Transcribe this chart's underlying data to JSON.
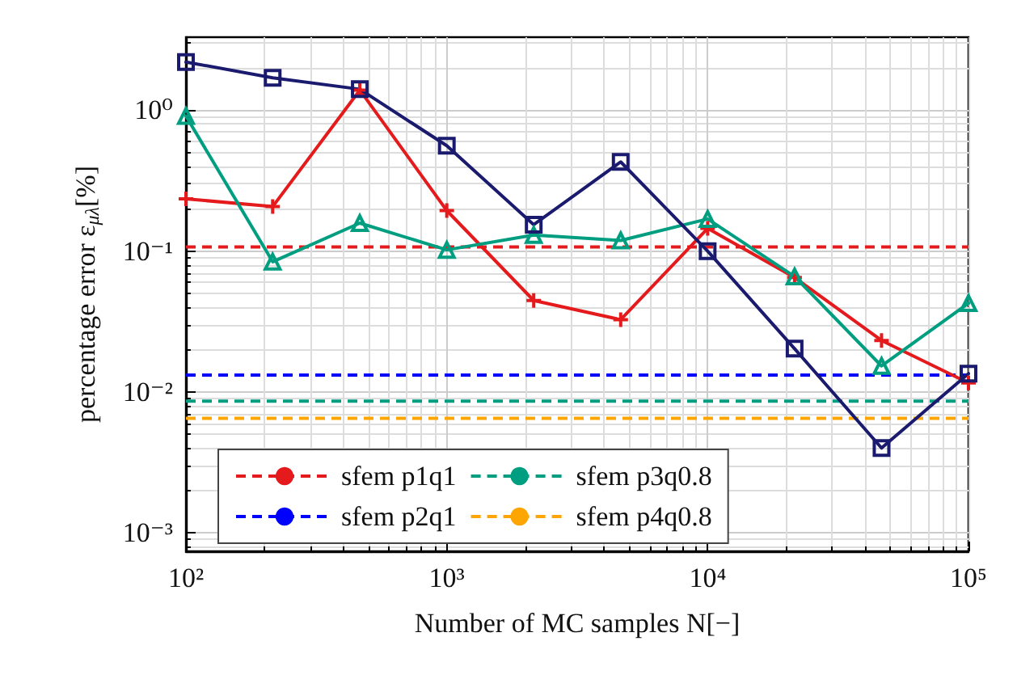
{
  "chart_data": {
    "type": "line",
    "xlabel": "Number of MC samples N[−]",
    "ylabel": "percentage error ε$_{μλ}$[%]",
    "x": [
      100,
      215,
      464,
      1000,
      2154,
      4642,
      10000,
      21544,
      46416,
      100000
    ],
    "series": [
      {
        "color": "#e41a1c",
        "marker": "cross",
        "values": [
          0.235,
          0.207,
          1.39,
          0.194,
          0.0446,
          0.0326,
          0.145,
          0.065,
          0.0232,
          0.0116
        ]
      },
      {
        "color": "#009e80",
        "marker": "triangle",
        "values": [
          0.91,
          0.084,
          0.158,
          0.102,
          0.13,
          0.119,
          0.169,
          0.066,
          0.0153,
          0.0427
        ]
      },
      {
        "color": "#1a1a6e",
        "marker": "square",
        "values": [
          2.2,
          1.7,
          1.41,
          0.56,
          0.154,
          0.43,
          0.1,
          0.0203,
          0.004,
          0.0135
        ]
      }
    ],
    "ref_lines": [
      {
        "axis": "y",
        "value": 0.107,
        "label": "sfem p1q1",
        "color": "#e41a1c",
        "line_style": "dashed"
      },
      {
        "axis": "y",
        "value": 0.0132,
        "label": "sfem p2q1",
        "color": "#0000ff",
        "line_style": "dashed"
      },
      {
        "axis": "y",
        "value": 0.0086,
        "label": "sfem p3q0.8",
        "color": "#009e80",
        "line_style": "dashed"
      },
      {
        "axis": "y",
        "value": 0.0065,
        "label": "sfem p4q0.8",
        "color": "#ffa500",
        "line_style": "dashed"
      }
    ],
    "xlim": [
      100,
      100000
    ],
    "ylim": [
      0.00074,
      3.3
    ],
    "xticks": [
      {
        "value": 100,
        "label": "10²"
      },
      {
        "value": 1000,
        "label": "10³"
      },
      {
        "value": 10000,
        "label": "10⁴"
      },
      {
        "value": 100000,
        "label": "10⁵"
      }
    ],
    "yticks": [
      {
        "value": 0.001,
        "label": "10⁻³"
      },
      {
        "value": 0.01,
        "label": "10⁻²"
      },
      {
        "value": 0.1,
        "label": "10⁻¹"
      },
      {
        "value": 1,
        "label": "10⁰"
      }
    ],
    "log": "xy",
    "grid": true,
    "legend": "bottom"
  }
}
